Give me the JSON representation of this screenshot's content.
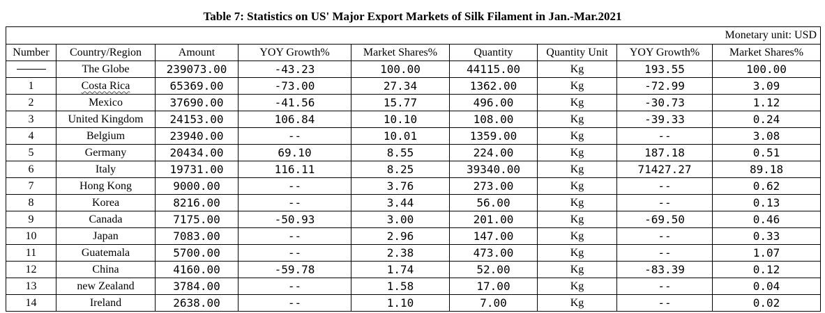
{
  "title": "Table 7: Statistics on US' Major Export Markets of Silk Filament in Jan.-Mar.2021",
  "unit_note": "Monetary unit: USD",
  "headers": {
    "number": "Number",
    "country": "Country/Region",
    "amount": "Amount",
    "amount_yoy": "YOY Growth%",
    "amount_share": "Market Shares%",
    "quantity": "Quantity",
    "quantity_unit": "Quantity Unit",
    "quantity_yoy": "YOY Growth%",
    "quantity_share": "Market Shares%"
  },
  "rows": [
    {
      "number": "",
      "country": "The Globe",
      "amount": "239073.00",
      "amount_yoy": "-43.23",
      "amount_share": "100.00",
      "quantity": "44115.00",
      "unit": "Kg",
      "quantity_yoy": "193.55",
      "quantity_share": "100.00"
    },
    {
      "number": "1",
      "country": "Costa Rica",
      "amount": "65369.00",
      "amount_yoy": "-73.00",
      "amount_share": "27.34",
      "quantity": "1362.00",
      "unit": "Kg",
      "quantity_yoy": "-72.99",
      "quantity_share": "3.09"
    },
    {
      "number": "2",
      "country": "Mexico",
      "amount": "37690.00",
      "amount_yoy": "-41.56",
      "amount_share": "15.77",
      "quantity": "496.00",
      "unit": "Kg",
      "quantity_yoy": "-30.73",
      "quantity_share": "1.12"
    },
    {
      "number": "3",
      "country": "United Kingdom",
      "amount": "24153.00",
      "amount_yoy": "106.84",
      "amount_share": "10.10",
      "quantity": "108.00",
      "unit": "Kg",
      "quantity_yoy": "-39.33",
      "quantity_share": "0.24"
    },
    {
      "number": "4",
      "country": "Belgium",
      "amount": "23940.00",
      "amount_yoy": "--",
      "amount_share": "10.01",
      "quantity": "1359.00",
      "unit": "Kg",
      "quantity_yoy": "--",
      "quantity_share": "3.08"
    },
    {
      "number": "5",
      "country": "Germany",
      "amount": "20434.00",
      "amount_yoy": "69.10",
      "amount_share": "8.55",
      "quantity": "224.00",
      "unit": "Kg",
      "quantity_yoy": "187.18",
      "quantity_share": "0.51"
    },
    {
      "number": "6",
      "country": "Italy",
      "amount": "19731.00",
      "amount_yoy": "116.11",
      "amount_share": "8.25",
      "quantity": "39340.00",
      "unit": "Kg",
      "quantity_yoy": "71427.27",
      "quantity_share": "89.18"
    },
    {
      "number": "7",
      "country": "Hong Kong",
      "amount": "9000.00",
      "amount_yoy": "--",
      "amount_share": "3.76",
      "quantity": "273.00",
      "unit": "Kg",
      "quantity_yoy": "--",
      "quantity_share": "0.62"
    },
    {
      "number": "8",
      "country": "Korea",
      "amount": "8216.00",
      "amount_yoy": "--",
      "amount_share": "3.44",
      "quantity": "56.00",
      "unit": "Kg",
      "quantity_yoy": "--",
      "quantity_share": "0.13"
    },
    {
      "number": "9",
      "country": "Canada",
      "amount": "7175.00",
      "amount_yoy": "-50.93",
      "amount_share": "3.00",
      "quantity": "201.00",
      "unit": "Kg",
      "quantity_yoy": "-69.50",
      "quantity_share": "0.46"
    },
    {
      "number": "10",
      "country": "Japan",
      "amount": "7083.00",
      "amount_yoy": "--",
      "amount_share": "2.96",
      "quantity": "147.00",
      "unit": "Kg",
      "quantity_yoy": "--",
      "quantity_share": "0.33"
    },
    {
      "number": "11",
      "country": "Guatemala",
      "amount": "5700.00",
      "amount_yoy": "--",
      "amount_share": "2.38",
      "quantity": "473.00",
      "unit": "Kg",
      "quantity_yoy": "--",
      "quantity_share": "1.07"
    },
    {
      "number": "12",
      "country": "China",
      "amount": "4160.00",
      "amount_yoy": "-59.78",
      "amount_share": "1.74",
      "quantity": "52.00",
      "unit": "Kg",
      "quantity_yoy": "-83.39",
      "quantity_share": "0.12"
    },
    {
      "number": "13",
      "country": "new Zealand",
      "amount": "3784.00",
      "amount_yoy": "--",
      "amount_share": "1.58",
      "quantity": "17.00",
      "unit": "Kg",
      "quantity_yoy": "--",
      "quantity_share": "0.04"
    },
    {
      "number": "14",
      "country": "Ireland",
      "amount": "2638.00",
      "amount_yoy": "--",
      "amount_share": "1.10",
      "quantity": "7.00",
      "unit": "Kg",
      "quantity_yoy": "--",
      "quantity_share": "0.02"
    }
  ]
}
